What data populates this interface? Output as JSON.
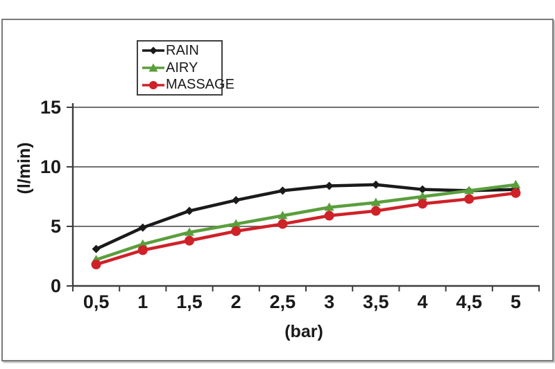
{
  "chart_data": {
    "type": "line",
    "title": "",
    "xlabel": "(bar)",
    "ylabel": "(l/min)",
    "x_values": [
      0.5,
      1,
      1.5,
      2,
      2.5,
      3,
      3.5,
      4,
      4.5,
      5
    ],
    "x_tick_labels": [
      "0,5",
      "1",
      "1,5",
      "2",
      "2,5",
      "3",
      "3,5",
      "4",
      "4,5",
      "5"
    ],
    "y_ticks": [
      0,
      5,
      10,
      15
    ],
    "y_tick_labels": [
      "0",
      "5",
      "10",
      "15"
    ],
    "ylim": [
      0,
      15
    ],
    "grid": true,
    "legend": {
      "position": "top-center-inside"
    },
    "colors": {
      "axis": "#3d3d3d",
      "gridline": "#5c5c5c",
      "text": "#1a1a1a",
      "frame_border": "#7a7a7a"
    },
    "series": [
      {
        "name": "RAIN",
        "color": "#1a1a1a",
        "marker": "diamond",
        "values": [
          3.1,
          4.9,
          6.3,
          7.2,
          8.0,
          8.4,
          8.5,
          8.1,
          8.0,
          8.1
        ]
      },
      {
        "name": "AIRY",
        "color": "#5a9e3d",
        "marker": "triangle",
        "values": [
          2.2,
          3.5,
          4.5,
          5.2,
          5.9,
          6.6,
          7.0,
          7.5,
          8.0,
          8.5
        ]
      },
      {
        "name": "MASSAGE",
        "color": "#cf2128",
        "marker": "circle",
        "values": [
          1.8,
          3.0,
          3.8,
          4.6,
          5.2,
          5.9,
          6.3,
          6.9,
          7.3,
          7.8
        ]
      }
    ]
  }
}
